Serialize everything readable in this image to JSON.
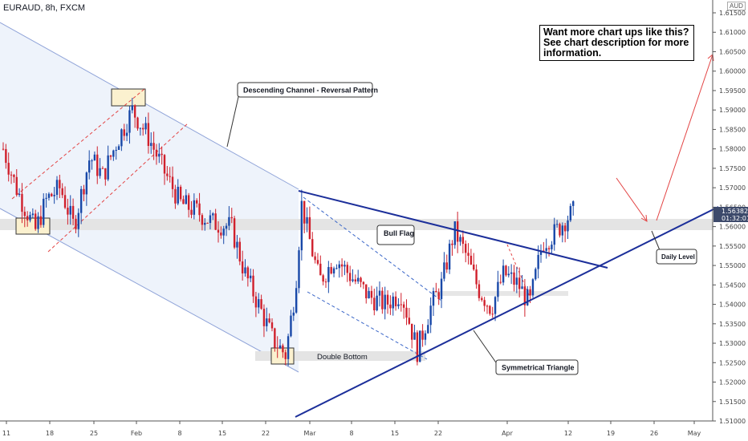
{
  "header": {
    "symbol": "EURAUD, 8h, FXCM",
    "currency": "AUD"
  },
  "promo_text": "Want more chart ups like this? See chart description for more information.",
  "colors": {
    "up": "#1848a8",
    "down": "#d0202c",
    "trendline": "#1c2f9a",
    "channel": "#8fa3d8",
    "level": "#e3e3e3",
    "red_guides": "#e34444"
  },
  "chart_data": {
    "type": "candlestick",
    "title": "EURAUD, 8h, FXCM",
    "y_axis": {
      "currency": "AUD",
      "ylim": [
        1.505,
        1.62
      ],
      "ticks": [
        "1.61500",
        "1.61000",
        "1.60500",
        "1.60000",
        "1.59500",
        "1.59000",
        "1.58500",
        "1.58000",
        "1.57500",
        "1.57000",
        "1.56500",
        "1.56000",
        "1.55500",
        "1.55000",
        "1.54500",
        "1.54000",
        "1.53500",
        "1.53000",
        "1.52500",
        "1.52000",
        "1.51500",
        "1.51000"
      ]
    },
    "x_axis": {
      "ticks": [
        "11",
        "18",
        "25",
        "Feb",
        "8",
        "15",
        "22",
        "Mar",
        "8",
        "15",
        "22",
        "Apr",
        "12",
        "19",
        "26",
        "May"
      ]
    },
    "last_price": "1.56382",
    "countdown": "01:32:01",
    "annotations": [
      {
        "label": "Descending Channel - Reversal Pattern"
      },
      {
        "label": "Bull Flag"
      },
      {
        "label": "Double Bottom"
      },
      {
        "label": "Symmetrical Triangle"
      },
      {
        "label": "Daily Level"
      }
    ],
    "key_points": [
      {
        "x": "Jan 15",
        "price": 1.559
      },
      {
        "x": "Jan 31",
        "price": 1.592
      },
      {
        "x": "Feb 25",
        "price": 1.527
      },
      {
        "x": "Mar 1",
        "price": 1.568
      },
      {
        "x": "Mar 19",
        "price": 1.527
      },
      {
        "x": "Mar 24",
        "price": 1.558
      },
      {
        "x": "Apr 1",
        "price": 1.537
      },
      {
        "x": "Apr 13",
        "price": 1.564
      }
    ],
    "daily_level": 1.56,
    "double_bottom_level": 1.526,
    "grid": false,
    "legend": "none"
  }
}
